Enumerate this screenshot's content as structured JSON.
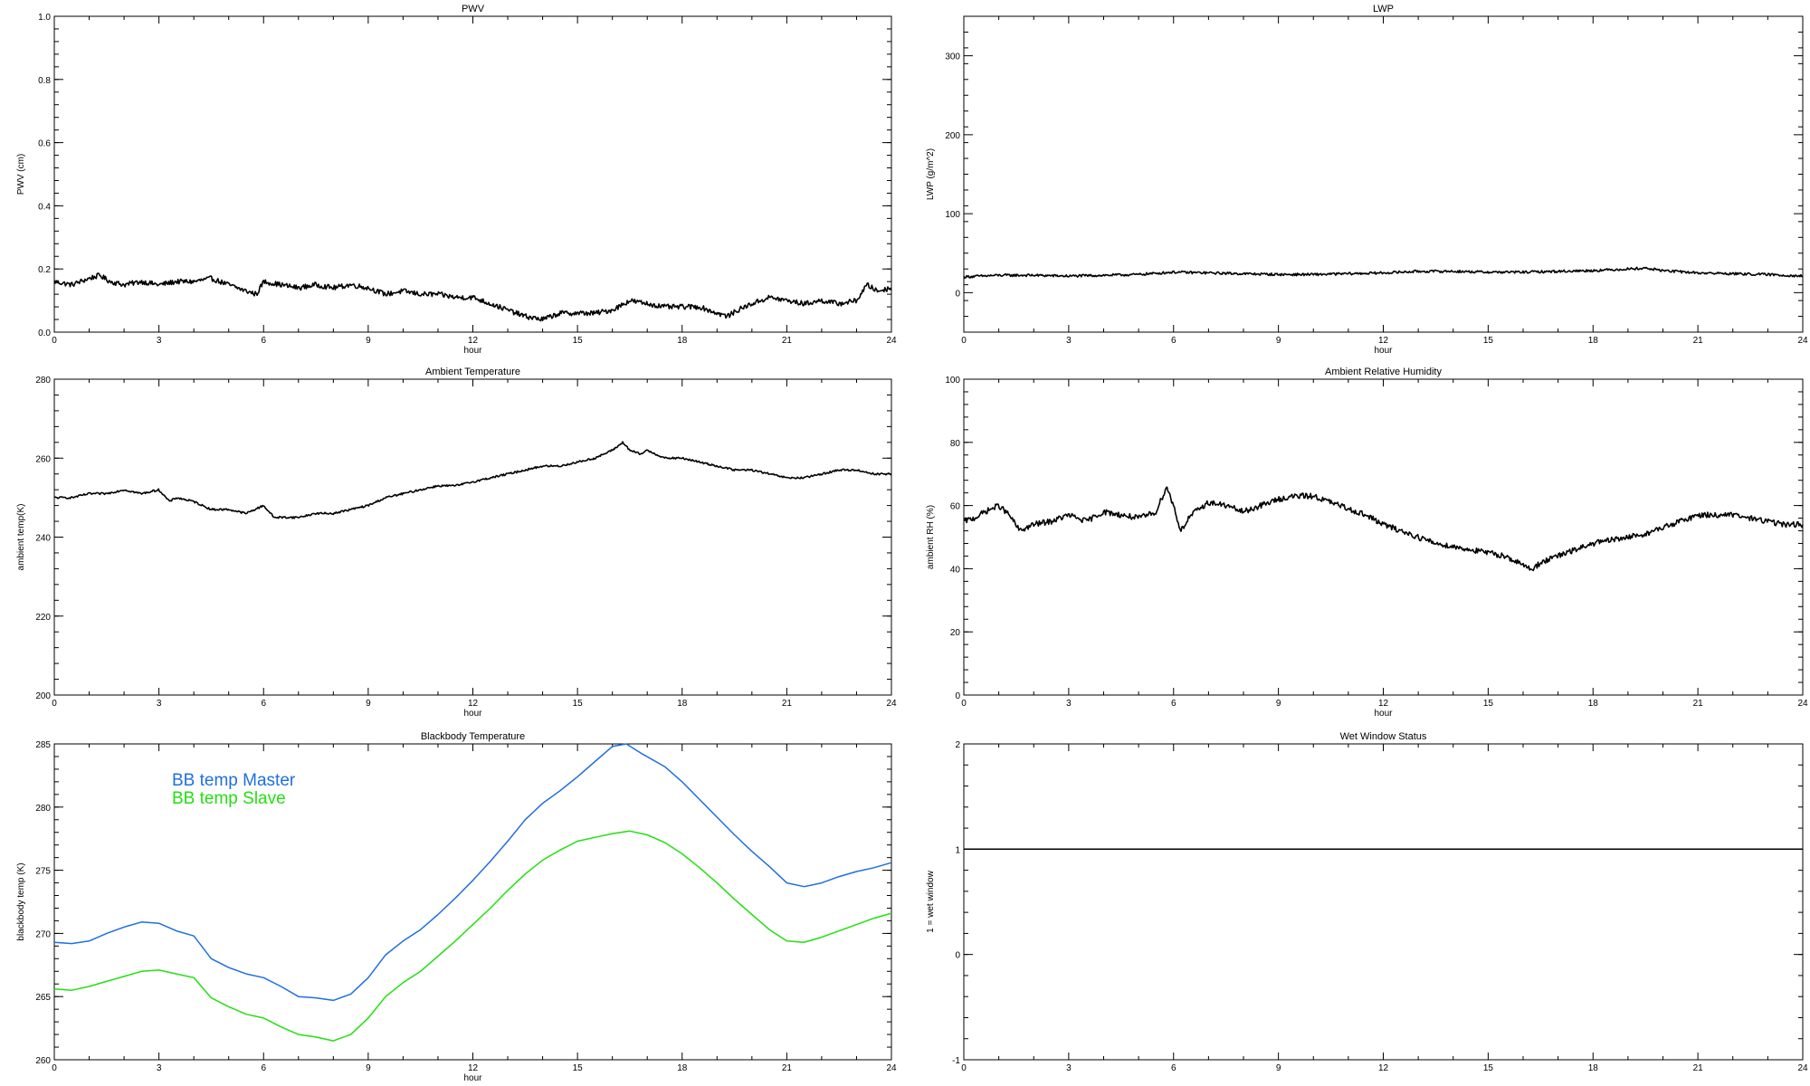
{
  "chart_data": [
    {
      "id": "pwv",
      "type": "line",
      "title": "PWV",
      "xlabel": "hour",
      "ylabel": "PWV (cm)",
      "xlim": [
        0,
        24
      ],
      "ylim": [
        0,
        1
      ],
      "xticks": [
        0,
        3,
        6,
        9,
        12,
        15,
        18,
        21,
        24
      ],
      "yticks": [
        "0.0",
        "0.2",
        "0.4",
        "0.6",
        "0.8",
        "1.0"
      ],
      "noise": 0.008,
      "series": [
        {
          "color": "#000000",
          "x": [
            0,
            0.5,
            1,
            1.3,
            1.6,
            2,
            2.5,
            3,
            3.5,
            4,
            4.5,
            5,
            5.5,
            5.8,
            6,
            6.5,
            7,
            7.5,
            8,
            8.5,
            9,
            9.5,
            10,
            10.5,
            11,
            11.5,
            12,
            12.5,
            13,
            13.5,
            14,
            14.5,
            15,
            15.5,
            16,
            16.5,
            17,
            17.5,
            18,
            18.5,
            19,
            19.3,
            19.6,
            20,
            20.5,
            21,
            21.5,
            22,
            22.5,
            23,
            23.3,
            23.6,
            24
          ],
          "y": [
            0.16,
            0.15,
            0.17,
            0.18,
            0.16,
            0.15,
            0.16,
            0.15,
            0.16,
            0.16,
            0.17,
            0.15,
            0.13,
            0.12,
            0.16,
            0.15,
            0.14,
            0.15,
            0.14,
            0.15,
            0.14,
            0.12,
            0.13,
            0.12,
            0.12,
            0.11,
            0.11,
            0.09,
            0.07,
            0.05,
            0.04,
            0.06,
            0.06,
            0.06,
            0.07,
            0.1,
            0.09,
            0.08,
            0.08,
            0.08,
            0.06,
            0.05,
            0.07,
            0.09,
            0.11,
            0.1,
            0.09,
            0.1,
            0.09,
            0.1,
            0.15,
            0.13,
            0.14
          ]
        }
      ]
    },
    {
      "id": "lwp",
      "type": "line",
      "title": "LWP",
      "xlabel": "hour",
      "ylabel": "LWP (g/m^2)",
      "xlim": [
        0,
        24
      ],
      "ylim": [
        -50,
        350
      ],
      "xticks": [
        0,
        3,
        6,
        9,
        12,
        15,
        18,
        21,
        24
      ],
      "yticks": [
        "0",
        "100",
        "200",
        "300"
      ],
      "noise": 1.6,
      "series": [
        {
          "color": "#000000",
          "x": [
            0,
            1,
            2,
            3,
            4,
            5,
            6,
            7,
            8,
            9,
            10,
            11,
            12,
            13,
            14,
            15,
            16,
            17,
            18,
            19,
            19.5,
            20,
            21,
            22,
            23,
            24
          ],
          "y": [
            20,
            22,
            22,
            21,
            22,
            23,
            26,
            25,
            24,
            23,
            23,
            24,
            25,
            27,
            27,
            26,
            26,
            27,
            28,
            30,
            31,
            28,
            25,
            24,
            23,
            21
          ]
        }
      ]
    },
    {
      "id": "ambient-temp",
      "type": "line",
      "title": "Ambient Temperature",
      "xlabel": "hour",
      "ylabel": "ambient temp(K)",
      "xlim": [
        0,
        24
      ],
      "ylim": [
        200,
        280
      ],
      "xticks": [
        0,
        3,
        6,
        9,
        12,
        15,
        18,
        21,
        24
      ],
      "yticks": [
        "200",
        "220",
        "240",
        "260",
        "280"
      ],
      "noise": 0.25,
      "series": [
        {
          "color": "#000000",
          "x": [
            0,
            0.5,
            1,
            1.5,
            2,
            2.5,
            3,
            3.3,
            3.5,
            4,
            4.5,
            5,
            5.5,
            6,
            6.3,
            6.7,
            7,
            7.5,
            8,
            8.5,
            9,
            9.5,
            10,
            10.5,
            11,
            11.5,
            12,
            12.5,
            13,
            13.5,
            14,
            14.5,
            15,
            15.5,
            16,
            16.3,
            16.5,
            16.8,
            17,
            17.5,
            18,
            18.5,
            19,
            19.5,
            20,
            20.5,
            21,
            21.5,
            22,
            22.5,
            23,
            23.5,
            24
          ],
          "y": [
            250,
            250,
            251,
            251,
            252,
            251,
            252,
            249,
            250,
            249,
            247,
            247,
            246,
            248,
            245,
            245,
            245,
            246,
            246,
            247,
            248,
            250,
            251,
            252,
            253,
            253,
            254,
            255,
            256,
            257,
            258,
            258,
            259,
            260,
            262,
            264,
            262,
            261,
            262,
            260,
            260,
            259,
            258,
            257,
            257,
            256,
            255,
            255,
            256,
            257,
            257,
            256,
            256
          ]
        }
      ]
    },
    {
      "id": "ambient-rh",
      "type": "line",
      "title": "Ambient Relative Humidity",
      "xlabel": "hour",
      "ylabel": "ambient RH (%)",
      "xlim": [
        0,
        24
      ],
      "ylim": [
        0,
        100
      ],
      "xticks": [
        0,
        3,
        6,
        9,
        12,
        15,
        18,
        21,
        24
      ],
      "yticks": [
        "0",
        "20",
        "40",
        "60",
        "80",
        "100"
      ],
      "noise": 0.9,
      "series": [
        {
          "color": "#000000",
          "x": [
            0,
            0.3,
            0.6,
            1,
            1.3,
            1.6,
            2,
            2.5,
            3,
            3.5,
            4,
            4.5,
            5,
            5.5,
            5.8,
            6,
            6.2,
            6.5,
            7,
            7.5,
            8,
            8.5,
            9,
            9.5,
            10,
            10.5,
            11,
            11.5,
            12,
            12.5,
            13,
            13.5,
            14,
            14.5,
            15,
            15.5,
            16,
            16.3,
            16.5,
            17,
            17.5,
            18,
            18.5,
            19,
            19.5,
            20,
            20.5,
            21,
            21.5,
            22,
            22.5,
            23,
            23.5,
            24
          ],
          "y": [
            55,
            56,
            58,
            60,
            57,
            52,
            54,
            55,
            57,
            55,
            58,
            57,
            56,
            58,
            66,
            60,
            52,
            57,
            61,
            60,
            58,
            60,
            62,
            63,
            63,
            61,
            59,
            57,
            54,
            52,
            50,
            48,
            47,
            46,
            45,
            44,
            41,
            40,
            42,
            44,
            46,
            48,
            49,
            50,
            51,
            53,
            55,
            57,
            57,
            57,
            56,
            55,
            54,
            54
          ]
        }
      ]
    },
    {
      "id": "blackbody-temp",
      "type": "line",
      "title": "Blackbody Temperature",
      "xlabel": "hour",
      "ylabel": "blackbody temp (K)",
      "xlim": [
        0,
        24
      ],
      "ylim": [
        260,
        285
      ],
      "xticks": [
        0,
        3,
        6,
        9,
        12,
        15,
        18,
        21,
        24
      ],
      "yticks": [
        "260",
        "265",
        "270",
        "275",
        "280",
        "285"
      ],
      "legend": "upper-left",
      "noise": 0,
      "series": [
        {
          "name": "BB temp Master",
          "color": "#1f6fe0",
          "x": [
            0,
            0.5,
            1,
            1.5,
            2,
            2.5,
            3,
            3.5,
            4,
            4.5,
            5,
            5.5,
            6,
            6.5,
            7,
            7.5,
            8,
            8.5,
            9,
            9.5,
            10,
            10.5,
            11,
            11.5,
            12,
            12.5,
            13,
            13.5,
            14,
            14.5,
            15,
            15.5,
            16,
            16.4,
            16.8,
            17.5,
            18,
            18.5,
            19,
            19.5,
            20,
            20.5,
            21,
            21.5,
            22,
            22.5,
            23,
            23.5,
            24
          ],
          "y": [
            269.3,
            269.2,
            269.4,
            270.0,
            270.5,
            270.9,
            270.8,
            270.2,
            269.8,
            268.0,
            267.3,
            266.8,
            266.5,
            265.8,
            265.0,
            264.9,
            264.7,
            265.2,
            266.5,
            268.3,
            269.4,
            270.3,
            271.5,
            272.8,
            274.2,
            275.7,
            277.3,
            279.0,
            280.3,
            281.3,
            282.4,
            283.6,
            284.8,
            285.0,
            284.3,
            283.2,
            282.0,
            280.6,
            279.2,
            277.8,
            276.5,
            275.3,
            274.0,
            273.7,
            274.0,
            274.5,
            274.9,
            275.2,
            275.6
          ]
        },
        {
          "name": "BB temp Slave",
          "color": "#22e010",
          "x": [
            0,
            0.5,
            1,
            1.5,
            2,
            2.5,
            3,
            3.5,
            4,
            4.5,
            5,
            5.5,
            6,
            6.5,
            7,
            7.5,
            8,
            8.5,
            9,
            9.5,
            10,
            10.5,
            11,
            11.5,
            12,
            12.5,
            13,
            13.5,
            14,
            14.5,
            15,
            15.5,
            16,
            16.5,
            17,
            17.5,
            18,
            18.5,
            19,
            19.5,
            20,
            20.5,
            21,
            21.5,
            22,
            22.5,
            23,
            23.5,
            24
          ],
          "y": [
            265.6,
            265.5,
            265.8,
            266.2,
            266.6,
            267.0,
            267.1,
            266.8,
            266.5,
            264.9,
            264.2,
            263.6,
            263.3,
            262.6,
            262.0,
            261.8,
            261.5,
            262.0,
            263.3,
            265.0,
            266.1,
            267.0,
            268.2,
            269.4,
            270.7,
            272.0,
            273.4,
            274.7,
            275.8,
            276.6,
            277.3,
            277.6,
            277.9,
            278.1,
            277.8,
            277.2,
            276.3,
            275.2,
            274.0,
            272.7,
            271.5,
            270.3,
            269.4,
            269.3,
            269.7,
            270.2,
            270.7,
            271.2,
            271.6
          ]
        }
      ]
    },
    {
      "id": "wet-window",
      "type": "line",
      "title": "Wet Window Status",
      "xlabel": "",
      "ylabel": "1 = wet window",
      "xlim": [
        0,
        24
      ],
      "ylim": [
        -1,
        2
      ],
      "xticks": [
        0,
        3,
        6,
        9,
        12,
        15,
        18,
        21,
        24
      ],
      "yticks": [
        "-1",
        "0",
        "1",
        "2"
      ],
      "noise": 0,
      "series": [
        {
          "color": "#000000",
          "x": [
            0,
            24
          ],
          "y": [
            1,
            1
          ]
        }
      ]
    }
  ]
}
